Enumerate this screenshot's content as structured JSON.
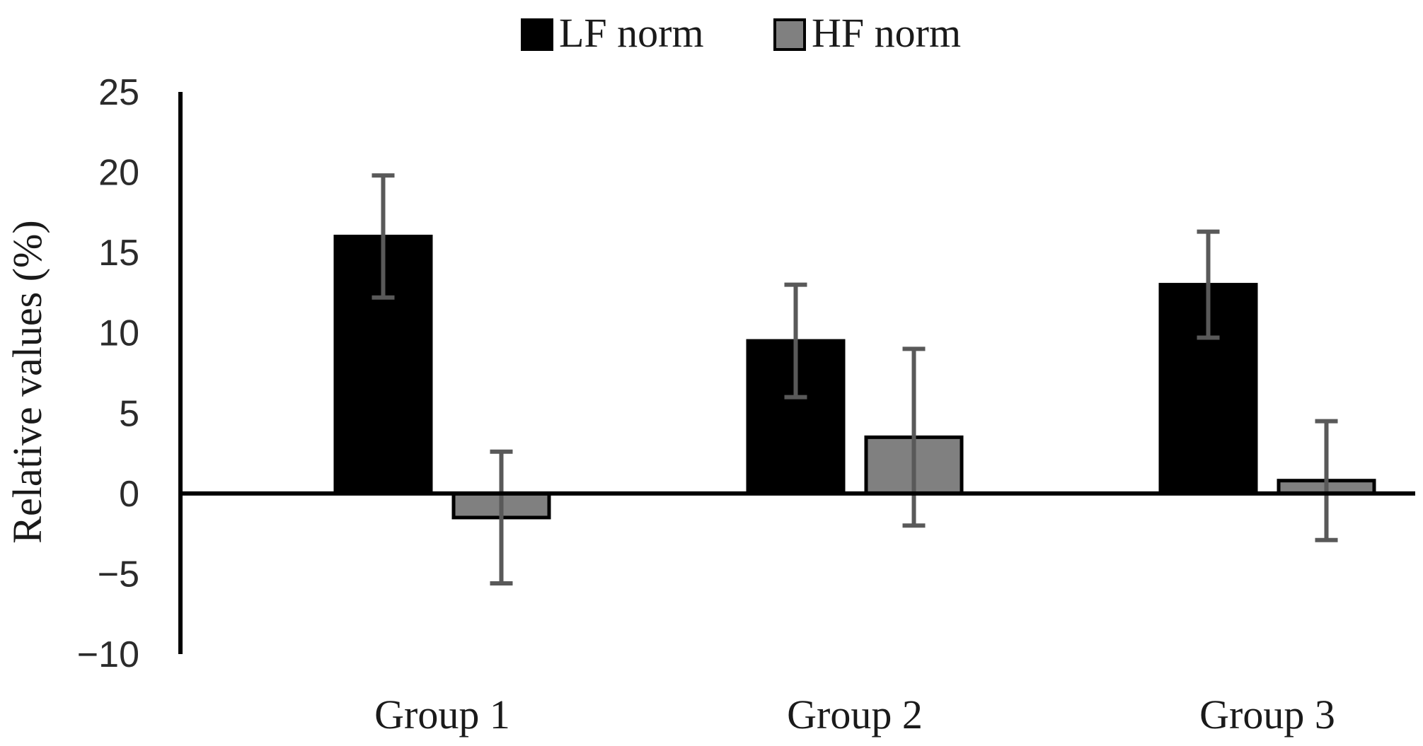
{
  "chart_data": {
    "type": "bar",
    "title": "",
    "xlabel": "",
    "ylabel": "Relative values (%)",
    "ylim": [
      -10,
      25
    ],
    "yticks": [
      -10,
      -5,
      0,
      5,
      10,
      15,
      20,
      25
    ],
    "yticks_labels": [
      "−10",
      "−5",
      "0",
      "5",
      "10",
      "15",
      "20",
      "25"
    ],
    "categories": [
      "Group 1",
      "Group 2",
      "Group 3"
    ],
    "legend_position": "top-center",
    "series": [
      {
        "name": "LF norm",
        "color": "#000000",
        "values": [
          16.0,
          9.5,
          13.0
        ],
        "error": [
          3.8,
          3.5,
          3.3
        ]
      },
      {
        "name": "HF norm",
        "color": "#808080",
        "values": [
          -1.5,
          3.5,
          0.8
        ],
        "error": [
          4.1,
          5.5,
          3.7
        ]
      }
    ],
    "colors": {
      "axis": "#000000",
      "error_bar": "#595959",
      "bar_edge": "#000000"
    }
  }
}
